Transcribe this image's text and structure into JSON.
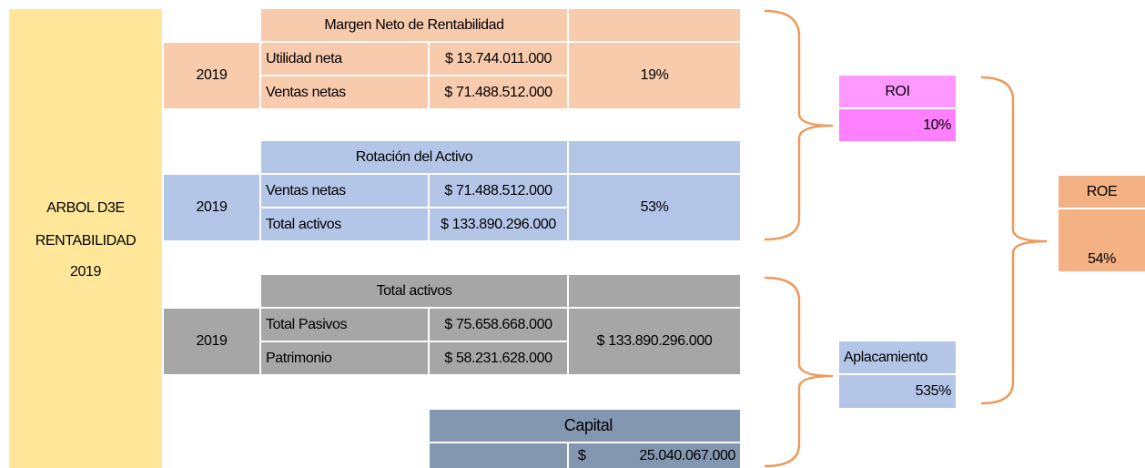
{
  "left": {
    "lines": [
      "ARBOL D3E",
      "RENTABILIDAD",
      "2019"
    ]
  },
  "blocks": [
    {
      "title": "Margen Neto de Rentabilidad",
      "year": "2019",
      "rows": [
        {
          "label": "Utilidad neta",
          "value": "$ 13.744.011.000"
        },
        {
          "label": "Ventas netas",
          "value": "$ 71.488.512.000"
        }
      ],
      "result": "19%"
    },
    {
      "title": "Rotación del Activo",
      "year": "2019",
      "rows": [
        {
          "label": "Ventas netas",
          "value": "$ 71.488.512.000"
        },
        {
          "label": "Total activos",
          "value": "$ 133.890.296.000"
        }
      ],
      "result": "53%"
    },
    {
      "title": "Total activos",
      "year": "2019",
      "rows": [
        {
          "label": "Total Pasivos",
          "value": "$ 75.658.668.000"
        },
        {
          "label": "Patrimonio",
          "value": "$ 58.231.628.000"
        }
      ],
      "result": "$ 133.890.296.000"
    }
  ],
  "capital": {
    "title": "Capital",
    "currency": "$",
    "value": "25.040.067.000"
  },
  "roi": {
    "title": "ROI",
    "value": "10%"
  },
  "aplacamiento": {
    "title": "Aplacamiento",
    "value": "535%"
  },
  "roe": {
    "title": "ROE",
    "value": "54%"
  }
}
